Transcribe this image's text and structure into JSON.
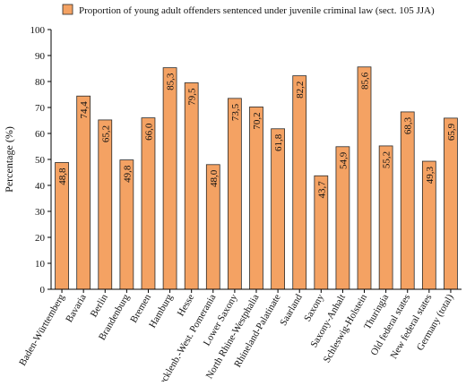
{
  "colors": {
    "bar_fill": "#F4A263",
    "bar_stroke": "#2a2a2a",
    "axis": "#000000"
  },
  "chart_data": {
    "type": "bar",
    "title": "",
    "xlabel": "",
    "ylabel": "Percentage (%)",
    "ylim": [
      0,
      100
    ],
    "yticks": [
      0,
      10,
      20,
      30,
      40,
      50,
      60,
      70,
      80,
      90,
      100
    ],
    "grid": false,
    "legend_position": "top",
    "series": [
      {
        "name": "Proportion of young adult offenders sentenced under juvenile criminal law (sect. 105 JJA)"
      }
    ],
    "categories": [
      "Baden-Württemberg",
      "Bavaria",
      "Berlin",
      "Brandenburg",
      "Bremen",
      "Hamburg",
      "Hesse",
      "Mecklenb.-West. Pomerania",
      "Lower Saxony",
      "North Rhine-Westphalia",
      "Rhineland-Palatinate",
      "Saarland",
      "Saxony",
      "Saxony-Anhalt",
      "Schleswig-Holstein",
      "Thuringia",
      "Old federal states",
      "New federal states",
      "Germany (total)"
    ],
    "values": [
      48.8,
      74.4,
      65.2,
      49.8,
      66.0,
      85.3,
      79.5,
      48.0,
      73.5,
      70.2,
      61.8,
      82.2,
      43.7,
      54.9,
      85.6,
      55.2,
      68.3,
      49.3,
      65.9
    ],
    "value_labels": [
      "48,8",
      "74,4",
      "65,2",
      "49,8",
      "66,0",
      "85,3",
      "79,5",
      "48,0",
      "73,5",
      "70,2",
      "61,8",
      "82,2",
      "43,7",
      "54,9",
      "85,6",
      "55,2",
      "68,3",
      "49,3",
      "65,9"
    ]
  }
}
